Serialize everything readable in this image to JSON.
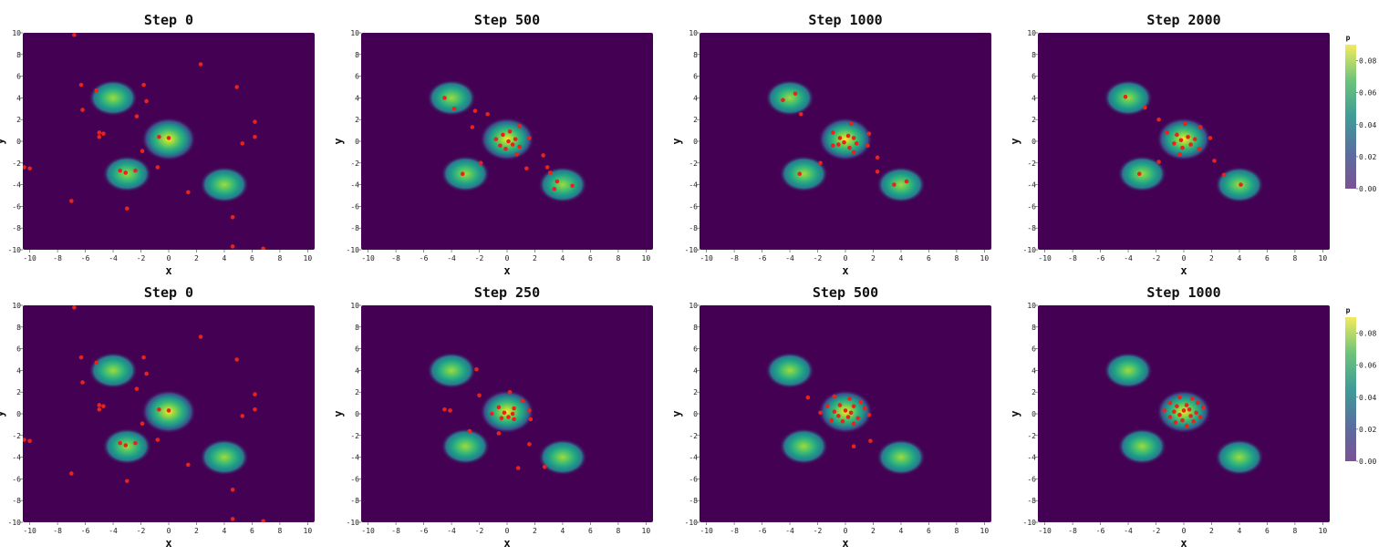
{
  "colors": {
    "background": "#440154",
    "point": "#e8231c",
    "colormap": [
      "#440154",
      "#3b528b",
      "#21918c",
      "#5ec962",
      "#fde725"
    ]
  },
  "chart_data": [
    {
      "type": "heatmap+scatter",
      "title": "Step 0",
      "xlabel": "x",
      "ylabel": "y",
      "xlim": [
        -10.5,
        10.5
      ],
      "ylim": [
        -10,
        10
      ],
      "xticks": [
        -10,
        -8,
        -6,
        -4,
        -2,
        0,
        2,
        4,
        6,
        8,
        10
      ],
      "yticks": [
        -10,
        -8,
        -6,
        -4,
        -2,
        0,
        2,
        4,
        6,
        8,
        10
      ],
      "density_centers": [
        [
          -4,
          4
        ],
        [
          0,
          0.2
        ],
        [
          -3,
          -3
        ],
        [
          4,
          -4
        ]
      ],
      "points": [
        [
          -6.8,
          9.8
        ],
        [
          2.3,
          7.1
        ],
        [
          -6.3,
          5.2
        ],
        [
          -1.8,
          5.2
        ],
        [
          4.9,
          5.0
        ],
        [
          -5.2,
          4.7
        ],
        [
          -1.6,
          3.7
        ],
        [
          -6.2,
          2.9
        ],
        [
          -2.3,
          2.3
        ],
        [
          6.2,
          1.8
        ],
        [
          -5.0,
          0.8
        ],
        [
          -4.7,
          0.7
        ],
        [
          -5.0,
          0.4
        ],
        [
          -0.7,
          0.4
        ],
        [
          0,
          0.3
        ],
        [
          6.2,
          0.4
        ],
        [
          5.3,
          -0.2
        ],
        [
          -1.9,
          -0.9
        ],
        [
          -0.8,
          -2.4
        ],
        [
          -10.4,
          -2.4
        ],
        [
          -10.0,
          -2.5
        ],
        [
          -3.5,
          -2.7
        ],
        [
          -2.4,
          -2.7
        ],
        [
          -3.1,
          -2.9
        ],
        [
          1.4,
          -4.7
        ],
        [
          -7.0,
          -5.5
        ],
        [
          -3.0,
          -6.2
        ],
        [
          4.6,
          -7.0
        ],
        [
          4.6,
          -9.7
        ],
        [
          6.8,
          -9.9
        ]
      ]
    },
    {
      "type": "heatmap+scatter",
      "title": "Step 500",
      "xlabel": "x",
      "ylabel": "y",
      "xlim": [
        -10.5,
        10.5
      ],
      "ylim": [
        -10,
        10
      ],
      "xticks": [
        -10,
        -8,
        -6,
        -4,
        -2,
        0,
        2,
        4,
        6,
        8,
        10
      ],
      "yticks": [
        -10,
        -8,
        -6,
        -4,
        -2,
        0,
        2,
        4,
        6,
        8,
        10
      ],
      "density_centers": [
        [
          -4,
          4
        ],
        [
          0,
          0.2
        ],
        [
          -3,
          -3
        ],
        [
          4,
          -4
        ]
      ],
      "points": [
        [
          -4.5,
          4.0
        ],
        [
          -3.8,
          3.0
        ],
        [
          -2.3,
          2.8
        ],
        [
          -1.4,
          2.5
        ],
        [
          -2.5,
          1.3
        ],
        [
          0.9,
          1.4
        ],
        [
          0.2,
          0.9
        ],
        [
          -0.3,
          0.6
        ],
        [
          -0.8,
          0.2
        ],
        [
          0.1,
          0.0
        ],
        [
          0.6,
          0.2
        ],
        [
          1.6,
          0.3
        ],
        [
          -0.5,
          -0.4
        ],
        [
          0.4,
          -0.3
        ],
        [
          0.9,
          -0.5
        ],
        [
          0.7,
          -1.2
        ],
        [
          -0.1,
          -0.7
        ],
        [
          -1.9,
          -2.0
        ],
        [
          2.6,
          -1.3
        ],
        [
          1.4,
          -2.5
        ],
        [
          2.9,
          -2.4
        ],
        [
          -3.2,
          -3.0
        ],
        [
          3.1,
          -2.9
        ],
        [
          3.6,
          -3.7
        ],
        [
          4.7,
          -4.1
        ],
        [
          3.4,
          -4.4
        ]
      ]
    },
    {
      "type": "heatmap+scatter",
      "title": "Step 1000",
      "xlabel": "x",
      "ylabel": "y",
      "xlim": [
        -10.5,
        10.5
      ],
      "ylim": [
        -10,
        10
      ],
      "xticks": [
        -10,
        -8,
        -6,
        -4,
        -2,
        0,
        2,
        4,
        6,
        8,
        10
      ],
      "yticks": [
        -10,
        -8,
        -6,
        -4,
        -2,
        0,
        2,
        4,
        6,
        8,
        10
      ],
      "density_centers": [
        [
          -4,
          4
        ],
        [
          0,
          0.2
        ],
        [
          -3,
          -3
        ],
        [
          4,
          -4
        ]
      ],
      "points": [
        [
          -4.5,
          3.8
        ],
        [
          -3.6,
          4.4
        ],
        [
          -3.2,
          2.5
        ],
        [
          0.4,
          1.6
        ],
        [
          1.7,
          0.7
        ],
        [
          -0.9,
          0.8
        ],
        [
          -0.4,
          0.3
        ],
        [
          0.2,
          0.5
        ],
        [
          0.6,
          0.3
        ],
        [
          -0.1,
          -0.1
        ],
        [
          0.8,
          -0.2
        ],
        [
          -0.5,
          -0.3
        ],
        [
          1.6,
          -0.4
        ],
        [
          0.3,
          -0.6
        ],
        [
          -0.9,
          -0.4
        ],
        [
          0.6,
          -1.0
        ],
        [
          -1.8,
          -2.0
        ],
        [
          2.3,
          -1.5
        ],
        [
          2.3,
          -2.8
        ],
        [
          -3.3,
          -3.0
        ],
        [
          3.5,
          -4.0
        ],
        [
          4.4,
          -3.7
        ]
      ]
    },
    {
      "type": "heatmap+scatter",
      "title": "Step 2000",
      "xlabel": "x",
      "ylabel": "y",
      "xlim": [
        -10.5,
        10.5
      ],
      "ylim": [
        -10,
        10
      ],
      "xticks": [
        -10,
        -8,
        -6,
        -4,
        -2,
        0,
        2,
        4,
        6,
        8,
        10
      ],
      "yticks": [
        -10,
        -8,
        -6,
        -4,
        -2,
        0,
        2,
        4,
        6,
        8,
        10
      ],
      "density_centers": [
        [
          -4,
          4
        ],
        [
          0,
          0.2
        ],
        [
          -3,
          -3
        ],
        [
          4,
          -4
        ]
      ],
      "points": [
        [
          -4.2,
          4.1
        ],
        [
          -2.8,
          3.1
        ],
        [
          -1.8,
          2.0
        ],
        [
          0.1,
          1.6
        ],
        [
          -1.2,
          0.8
        ],
        [
          1.2,
          1.3
        ],
        [
          -0.5,
          0.6
        ],
        [
          0.3,
          0.4
        ],
        [
          -0.2,
          0.1
        ],
        [
          0.8,
          0.2
        ],
        [
          1.9,
          0.3
        ],
        [
          -0.7,
          -0.2
        ],
        [
          0.5,
          -0.3
        ],
        [
          -0.1,
          -0.6
        ],
        [
          1.1,
          -0.7
        ],
        [
          -0.3,
          -1.2
        ],
        [
          -1.8,
          -1.9
        ],
        [
          2.2,
          -1.8
        ],
        [
          -3.2,
          -3.0
        ],
        [
          2.9,
          -3.1
        ],
        [
          4.1,
          -4.0
        ]
      ]
    },
    {
      "type": "heatmap+scatter",
      "title": "Step 0",
      "xlabel": "x",
      "ylabel": "y",
      "xlim": [
        -10.5,
        10.5
      ],
      "ylim": [
        -10,
        10
      ],
      "xticks": [
        -10,
        -8,
        -6,
        -4,
        -2,
        0,
        2,
        4,
        6,
        8,
        10
      ],
      "yticks": [
        -10,
        -8,
        -6,
        -4,
        -2,
        0,
        2,
        4,
        6,
        8,
        10
      ],
      "density_centers": [
        [
          -4,
          4
        ],
        [
          0,
          0.2
        ],
        [
          -3,
          -3
        ],
        [
          4,
          -4
        ]
      ],
      "points": [
        [
          -6.8,
          9.8
        ],
        [
          2.3,
          7.1
        ],
        [
          -6.3,
          5.2
        ],
        [
          -1.8,
          5.2
        ],
        [
          4.9,
          5.0
        ],
        [
          -5.2,
          4.7
        ],
        [
          -1.6,
          3.7
        ],
        [
          -6.2,
          2.9
        ],
        [
          -2.3,
          2.3
        ],
        [
          6.2,
          1.8
        ],
        [
          -5.0,
          0.8
        ],
        [
          -4.7,
          0.7
        ],
        [
          -5.0,
          0.4
        ],
        [
          -0.7,
          0.4
        ],
        [
          0,
          0.3
        ],
        [
          6.2,
          0.4
        ],
        [
          5.3,
          -0.2
        ],
        [
          -1.9,
          -0.9
        ],
        [
          -0.8,
          -2.4
        ],
        [
          -10.4,
          -2.4
        ],
        [
          -10.0,
          -2.5
        ],
        [
          -3.5,
          -2.7
        ],
        [
          -2.4,
          -2.7
        ],
        [
          -3.1,
          -2.9
        ],
        [
          1.4,
          -4.7
        ],
        [
          -7.0,
          -5.5
        ],
        [
          -3.0,
          -6.2
        ],
        [
          4.6,
          -7.0
        ],
        [
          4.6,
          -9.7
        ],
        [
          6.8,
          -9.9
        ]
      ]
    },
    {
      "type": "heatmap+scatter",
      "title": "Step 250",
      "xlabel": "x",
      "ylabel": "y",
      "xlim": [
        -10.5,
        10.5
      ],
      "ylim": [
        -10,
        10
      ],
      "xticks": [
        -10,
        -8,
        -6,
        -4,
        -2,
        0,
        2,
        4,
        6,
        8,
        10
      ],
      "yticks": [
        -10,
        -8,
        -6,
        -4,
        -2,
        0,
        2,
        4,
        6,
        8,
        10
      ],
      "density_centers": [
        [
          -4,
          4
        ],
        [
          0,
          0.2
        ],
        [
          -3,
          -3
        ],
        [
          4,
          -4
        ]
      ],
      "points": [
        [
          -2.2,
          4.1
        ],
        [
          -2.0,
          1.7
        ],
        [
          0.2,
          2.0
        ],
        [
          1.1,
          1.2
        ],
        [
          -0.6,
          0.6
        ],
        [
          0.5,
          0.5
        ],
        [
          -0.2,
          0.1
        ],
        [
          0.4,
          0.0
        ],
        [
          -1.1,
          0.0
        ],
        [
          1.6,
          0.3
        ],
        [
          0.1,
          -0.3
        ],
        [
          0.5,
          -0.5
        ],
        [
          -0.4,
          -0.4
        ],
        [
          1.7,
          -0.5
        ],
        [
          -4.5,
          0.4
        ],
        [
          -4.1,
          0.3
        ],
        [
          -0.6,
          -1.8
        ],
        [
          -2.7,
          -1.6
        ],
        [
          1.6,
          -2.8
        ],
        [
          0.8,
          -5.0
        ],
        [
          2.7,
          -4.9
        ]
      ]
    },
    {
      "type": "heatmap+scatter",
      "title": "Step 500",
      "xlabel": "x",
      "ylabel": "y",
      "xlim": [
        -10.5,
        10.5
      ],
      "ylim": [
        -10,
        10
      ],
      "xticks": [
        -10,
        -8,
        -6,
        -4,
        -2,
        0,
        2,
        4,
        6,
        8,
        10
      ],
      "yticks": [
        -10,
        -8,
        -6,
        -4,
        -2,
        0,
        2,
        4,
        6,
        8,
        10
      ],
      "density_centers": [
        [
          -4,
          4
        ],
        [
          0,
          0.2
        ],
        [
          -3,
          -3
        ],
        [
          4,
          -4
        ]
      ],
      "points": [
        [
          -2.7,
          1.5
        ],
        [
          -0.8,
          1.6
        ],
        [
          0.3,
          1.4
        ],
        [
          1.1,
          1.1
        ],
        [
          -1.3,
          0.7
        ],
        [
          -0.4,
          0.8
        ],
        [
          0.6,
          0.7
        ],
        [
          1.4,
          0.5
        ],
        [
          -0.8,
          0.2
        ],
        [
          0.0,
          0.3
        ],
        [
          0.4,
          0.1
        ],
        [
          -1.8,
          0.1
        ],
        [
          1.7,
          -0.1
        ],
        [
          -0.5,
          -0.2
        ],
        [
          0.2,
          -0.3
        ],
        [
          0.9,
          -0.4
        ],
        [
          -0.2,
          -0.7
        ],
        [
          0.6,
          -0.9
        ],
        [
          -1.0,
          -0.6
        ],
        [
          1.8,
          -2.5
        ],
        [
          0.6,
          -3.0
        ]
      ]
    },
    {
      "type": "heatmap+scatter",
      "title": "Step 1000",
      "xlabel": "x",
      "ylabel": "y",
      "xlim": [
        -10.5,
        10.5
      ],
      "ylim": [
        -10,
        10
      ],
      "xticks": [
        -10,
        -8,
        -6,
        -4,
        -2,
        0,
        2,
        4,
        6,
        8,
        10
      ],
      "yticks": [
        -10,
        -8,
        -6,
        -4,
        -2,
        0,
        2,
        4,
        6,
        8,
        10
      ],
      "density_centers": [
        [
          -4,
          4
        ],
        [
          0,
          0.2
        ],
        [
          -3,
          -3
        ],
        [
          4,
          -4
        ]
      ],
      "points": [
        [
          -0.3,
          1.5
        ],
        [
          0.6,
          1.4
        ],
        [
          -1.0,
          1.0
        ],
        [
          1.0,
          1.0
        ],
        [
          -0.5,
          0.7
        ],
        [
          0.2,
          0.8
        ],
        [
          1.4,
          0.6
        ],
        [
          -1.4,
          0.3
        ],
        [
          -0.7,
          0.2
        ],
        [
          0.0,
          0.3
        ],
        [
          0.4,
          0.4
        ],
        [
          0.9,
          0.1
        ],
        [
          -0.3,
          -0.1
        ],
        [
          0.5,
          -0.2
        ],
        [
          1.2,
          -0.3
        ],
        [
          -1.0,
          -0.3
        ],
        [
          -0.1,
          -0.6
        ],
        [
          0.7,
          -0.7
        ],
        [
          -0.6,
          -0.8
        ],
        [
          0.2,
          -1.1
        ]
      ]
    }
  ],
  "colorbars": [
    {
      "title": "p",
      "ticks": [
        "0.08",
        "0.06",
        "0.04",
        "0.02",
        "0.00"
      ],
      "range": [
        0,
        0.09
      ]
    },
    {
      "title": "p",
      "ticks": [
        "0.08",
        "0.06",
        "0.04",
        "0.02",
        "0.00"
      ],
      "range": [
        0,
        0.09
      ]
    }
  ]
}
